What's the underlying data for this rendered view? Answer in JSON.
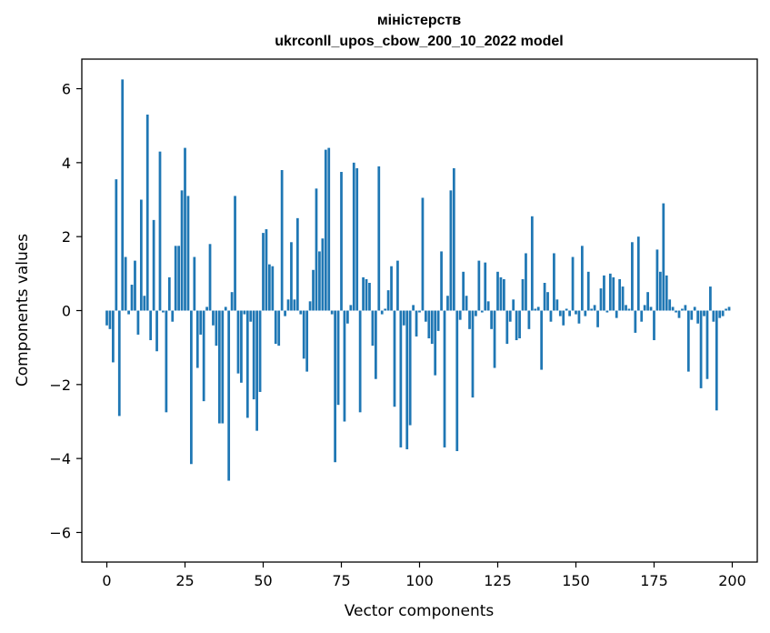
{
  "chart_data": {
    "type": "bar",
    "title": [
      "міністерств",
      "ukrconll_upos_cbow_200_10_2022 model"
    ],
    "xlabel": "Vector components",
    "ylabel": "Components values",
    "xlim": [
      -8,
      208
    ],
    "ylim": [
      -6.8,
      6.8
    ],
    "xticks": [
      0,
      25,
      50,
      75,
      100,
      125,
      150,
      175,
      200
    ],
    "xtick_labels": [
      "0",
      "25",
      "50",
      "75",
      "100",
      "125",
      "150",
      "175",
      "200"
    ],
    "yticks": [
      -6,
      -4,
      -2,
      0,
      2,
      4,
      6
    ],
    "ytick_labels": [
      "−6",
      "−4",
      "−2",
      "0",
      "2",
      "4",
      "6"
    ],
    "grid": false,
    "bar_color": "#1f77b4",
    "x_start": 0,
    "values": [
      -0.4,
      -0.5,
      -1.4,
      3.55,
      -2.85,
      6.25,
      1.45,
      -0.1,
      0.7,
      1.35,
      -0.65,
      3.0,
      0.4,
      5.3,
      -0.8,
      2.45,
      -1.1,
      4.3,
      -0.05,
      -2.75,
      0.9,
      -0.3,
      1.75,
      1.75,
      3.25,
      4.4,
      3.1,
      -4.15,
      1.45,
      -1.55,
      -0.65,
      -2.45,
      0.1,
      1.8,
      -0.4,
      -0.95,
      -3.05,
      -3.05,
      0.1,
      -4.6,
      0.5,
      3.1,
      -1.7,
      -1.95,
      -0.1,
      -2.9,
      -0.3,
      -2.4,
      -3.25,
      -2.2,
      2.1,
      2.2,
      1.25,
      1.2,
      -0.9,
      -0.95,
      3.8,
      -0.15,
      0.3,
      1.85,
      0.3,
      2.5,
      -0.1,
      -1.3,
      -1.65,
      0.25,
      1.1,
      3.3,
      1.6,
      1.95,
      4.35,
      4.4,
      -0.1,
      -4.1,
      -2.55,
      3.75,
      -3.0,
      -0.35,
      0.15,
      4.0,
      3.85,
      -2.75,
      0.9,
      0.85,
      0.75,
      -0.95,
      -1.85,
      3.9,
      -0.1,
      0.05,
      0.55,
      1.2,
      -2.6,
      1.35,
      -3.7,
      -0.4,
      -3.75,
      -3.1,
      0.15,
      -0.7,
      -0.05,
      3.05,
      -0.3,
      -0.75,
      -0.9,
      -1.75,
      -0.55,
      1.6,
      -3.7,
      0.4,
      3.25,
      3.85,
      -3.8,
      -0.25,
      1.05,
      0.4,
      -0.5,
      -2.35,
      -0.15,
      1.35,
      -0.05,
      1.3,
      0.25,
      -0.5,
      -1.55,
      1.05,
      0.9,
      0.85,
      -0.9,
      -0.3,
      0.3,
      -0.8,
      -0.75,
      0.85,
      1.55,
      -0.5,
      2.55,
      0.05,
      0.1,
      -1.6,
      0.75,
      0.5,
      -0.3,
      1.55,
      0.3,
      -0.15,
      -0.4,
      0.05,
      -0.15,
      1.45,
      -0.1,
      -0.35,
      1.75,
      -0.15,
      1.05,
      0.05,
      0.15,
      -0.45,
      0.6,
      0.95,
      -0.05,
      1.0,
      0.9,
      -0.2,
      0.85,
      0.65,
      0.15,
      0.05,
      1.85,
      -0.6,
      2.0,
      -0.3,
      0.15,
      0.5,
      0.1,
      -0.8,
      1.65,
      1.05,
      2.9,
      0.95,
      0.3,
      0.1,
      -0.05,
      -0.2,
      0.05,
      0.15,
      -1.65,
      -0.25,
      0.1,
      -0.35,
      -2.1,
      -0.15,
      -1.85,
      0.65,
      -0.3,
      -2.7,
      -0.2,
      -0.15,
      0.05,
      0.1
    ]
  }
}
